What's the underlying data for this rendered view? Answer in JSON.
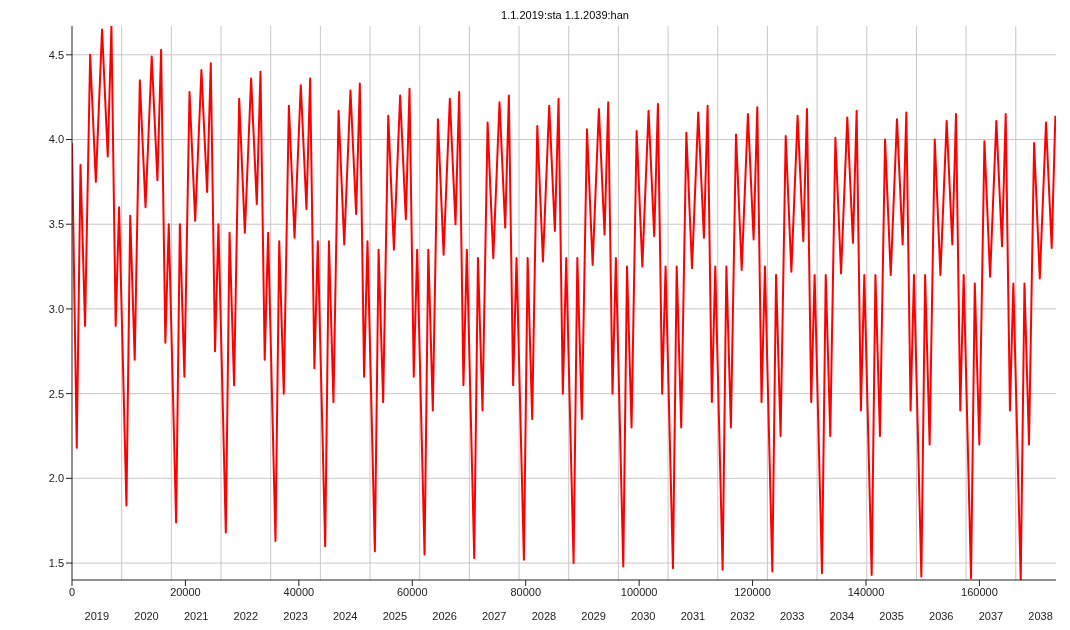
{
  "chart_data": {
    "type": "line",
    "title": "1.1.2019:sta  1.1.2039:han",
    "x": [
      0,
      840,
      1500,
      2300,
      3200,
      4200,
      5300,
      6300,
      6950,
      7700,
      8300,
      9600,
      10260,
      11060,
      11960,
      12960,
      14060,
      15060,
      15710,
      16460,
      17060,
      18360,
      19020,
      19820,
      20720,
      21720,
      22820,
      23820,
      24470,
      25220,
      25820,
      27120,
      27780,
      28580,
      29480,
      30480,
      31580,
      32580,
      33230,
      33980,
      34580,
      35880,
      36540,
      37340,
      38240,
      39240,
      40340,
      41340,
      41990,
      42740,
      43340,
      44640,
      45300,
      46100,
      47000,
      48000,
      49100,
      50100,
      50750,
      51500,
      52100,
      53400,
      54060,
      54860,
      55760,
      56760,
      57860,
      58860,
      59510,
      60260,
      60860,
      62160,
      62820,
      63620,
      64520,
      65520,
      66620,
      67620,
      68270,
      69020,
      69620,
      70920,
      71580,
      72380,
      73280,
      74280,
      75380,
      76380,
      77030,
      77780,
      78380,
      79680,
      80340,
      81140,
      82040,
      83040,
      84140,
      85140,
      85790,
      86540,
      87140,
      88440,
      89100,
      89900,
      90800,
      91800,
      92900,
      93900,
      94550,
      95300,
      95900,
      97200,
      97860,
      98660,
      99560,
      100560,
      101660,
      102660,
      103310,
      104060,
      104660,
      105960,
      106620,
      107420,
      108320,
      109320,
      110420,
      111420,
      112070,
      112820,
      113420,
      114720,
      115380,
      116180,
      117080,
      118080,
      119180,
      120180,
      120830,
      121580,
      122180,
      123480,
      124140,
      124940,
      125840,
      126840,
      127940,
      128940,
      129590,
      130340,
      130940,
      132240,
      132900,
      133700,
      134600,
      135600,
      136700,
      137700,
      138350,
      139100,
      139700,
      141000,
      141660,
      142460,
      143360,
      144360,
      145460,
      146460,
      147110,
      147860,
      148460,
      149760,
      150420,
      151220,
      152120,
      153120,
      154220,
      155220,
      155870,
      156620,
      157220,
      158520,
      159180,
      159980,
      160880,
      161880,
      162980,
      163980,
      164630,
      165380,
      165980,
      167280,
      167940,
      168740,
      169640,
      170640,
      171740,
      172740,
      173390
    ],
    "series": [
      {
        "color": "#ff0000",
        "values": [
          3.98,
          2.18,
          3.85,
          2.9,
          4.5,
          3.75,
          4.65,
          3.9,
          4.67,
          2.9,
          3.6,
          1.84,
          3.55,
          2.7,
          4.35,
          3.6,
          4.49,
          3.76,
          4.53,
          2.8,
          3.5,
          1.74,
          3.5,
          2.6,
          4.28,
          3.52,
          4.41,
          3.69,
          4.45,
          2.75,
          3.5,
          1.68,
          3.45,
          2.55,
          4.24,
          3.45,
          4.36,
          3.62,
          4.4,
          2.7,
          3.45,
          1.63,
          3.4,
          2.5,
          4.2,
          3.42,
          4.32,
          3.59,
          4.36,
          2.65,
          3.4,
          1.6,
          3.4,
          2.45,
          4.17,
          3.38,
          4.29,
          3.56,
          4.33,
          2.6,
          3.4,
          1.57,
          3.35,
          2.45,
          4.14,
          3.35,
          4.26,
          3.53,
          4.3,
          2.6,
          3.35,
          1.55,
          3.35,
          2.4,
          4.12,
          3.32,
          4.24,
          3.5,
          4.28,
          2.55,
          3.35,
          1.53,
          3.3,
          2.4,
          4.1,
          3.3,
          4.22,
          3.48,
          4.26,
          2.55,
          3.3,
          1.52,
          3.3,
          2.35,
          4.08,
          3.28,
          4.2,
          3.46,
          4.24,
          2.5,
          3.3,
          1.5,
          3.3,
          2.35,
          4.06,
          3.26,
          4.18,
          3.44,
          4.22,
          2.5,
          3.3,
          1.48,
          3.25,
          2.3,
          4.05,
          3.25,
          4.17,
          3.43,
          4.21,
          2.5,
          3.25,
          1.47,
          3.25,
          2.3,
          4.04,
          3.24,
          4.16,
          3.42,
          4.2,
          2.45,
          3.25,
          1.46,
          3.25,
          2.3,
          4.03,
          3.23,
          4.15,
          3.41,
          4.19,
          2.45,
          3.25,
          1.45,
          3.2,
          2.25,
          4.02,
          3.22,
          4.14,
          3.4,
          4.18,
          2.45,
          3.2,
          1.44,
          3.2,
          2.25,
          4.01,
          3.21,
          4.13,
          3.39,
          4.17,
          2.4,
          3.2,
          1.43,
          3.2,
          2.25,
          4.0,
          3.2,
          4.12,
          3.38,
          4.16,
          2.4,
          3.2,
          1.42,
          3.2,
          2.2,
          4.0,
          3.2,
          4.11,
          3.38,
          4.15,
          2.4,
          3.2,
          1.41,
          3.15,
          2.2,
          3.99,
          3.19,
          4.11,
          3.37,
          4.15,
          2.4,
          3.15,
          1.4,
          3.15,
          2.2,
          3.98,
          3.18,
          4.1,
          3.36,
          4.14
        ]
      }
    ],
    "xlim": [
      0,
      173500
    ],
    "xticks": [
      0,
      20000,
      40000,
      60000,
      80000,
      100000,
      120000,
      140000,
      160000
    ],
    "x2lim": [
      2018.5,
      2038.31
    ],
    "x2ticks": [
      2019,
      2020,
      2021,
      2022,
      2023,
      2024,
      2025,
      2026,
      2027,
      2028,
      2029,
      2030,
      2031,
      2032,
      2033,
      2034,
      2035,
      2036,
      2037,
      2038,
      {
        "value": 2019.5,
        "label": null
      },
      {
        "value": 2020.5,
        "label": null
      },
      {
        "value": 2021.5,
        "label": null
      },
      {
        "value": 2022.5,
        "label": null
      },
      {
        "value": 2023.5,
        "label": null
      },
      {
        "value": 2024.5,
        "label": null
      },
      {
        "value": 2025.5,
        "label": null
      },
      {
        "value": 2026.5,
        "label": null
      },
      {
        "value": 2027.5,
        "label": null
      },
      {
        "value": 2028.5,
        "label": null
      },
      {
        "value": 2029.5,
        "label": null
      },
      {
        "value": 2030.5,
        "label": null
      },
      {
        "value": 2031.5,
        "label": null
      },
      {
        "value": 2032.5,
        "label": null
      },
      {
        "value": 2033.5,
        "label": null
      },
      {
        "value": 2034.5,
        "label": null
      },
      {
        "value": 2035.5,
        "label": null
      },
      {
        "value": 2036.5,
        "label": null
      },
      {
        "value": 2037.5,
        "label": null
      }
    ],
    "ylim": [
      1.4,
      4.67
    ],
    "yticks": [
      {
        "value": 1.5,
        "label": "1.5"
      },
      {
        "value": 2,
        "label": "2.0"
      },
      {
        "value": 2.5,
        "label": "2.5"
      },
      {
        "value": 3,
        "label": "3.0"
      },
      {
        "value": 3.5,
        "label": "3.5"
      },
      {
        "value": 4,
        "label": "4.0"
      },
      {
        "value": 4.5,
        "label": "4.5"
      }
    ],
    "grid": true,
    "legend": false,
    "marker": "none",
    "line_style": "solid"
  }
}
